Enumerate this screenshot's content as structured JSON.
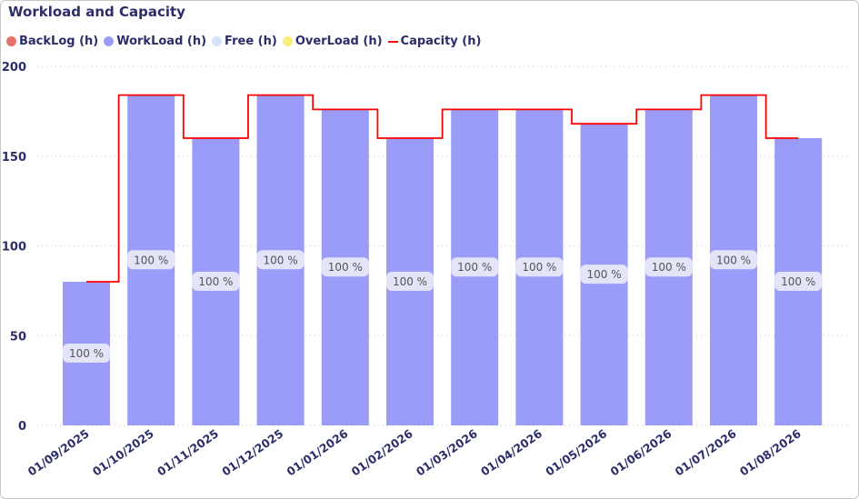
{
  "chart_data": {
    "type": "bar",
    "title": "Workload and Capacity",
    "legend": [
      {
        "name": "BackLog (h)",
        "color": "#e8706a",
        "kind": "dot"
      },
      {
        "name": "WorkLoad (h)",
        "color": "#9b9cfa",
        "kind": "dot"
      },
      {
        "name": "Free (h)",
        "color": "#d3e5f7",
        "kind": "dot"
      },
      {
        "name": "OverLoad (h)",
        "color": "#f9ef7a",
        "kind": "dot"
      },
      {
        "name": "Capacity (h)",
        "color": "#ff0000",
        "kind": "line"
      }
    ],
    "legend_position": "top-left",
    "categories": [
      "01/09/2025",
      "01/10/2025",
      "01/11/2025",
      "01/12/2025",
      "01/01/2026",
      "01/02/2026",
      "01/03/2026",
      "01/04/2026",
      "01/05/2026",
      "01/06/2026",
      "01/07/2026",
      "01/08/2026"
    ],
    "series": [
      {
        "name": "WorkLoad (h)",
        "type": "bar",
        "values": [
          80,
          184,
          160,
          184,
          176,
          160,
          176,
          176,
          168,
          176,
          184,
          160
        ]
      },
      {
        "name": "Capacity (h)",
        "type": "step-line",
        "values": [
          80,
          184,
          160,
          184,
          176,
          160,
          176,
          176,
          168,
          176,
          184,
          160
        ]
      }
    ],
    "data_labels": [
      "100 %",
      "100 %",
      "100 %",
      "100 %",
      "100 %",
      "100 %",
      "100 %",
      "100 %",
      "100 %",
      "100 %",
      "100 %",
      "100 %"
    ],
    "yticks": [
      0,
      50,
      100,
      150,
      200
    ],
    "ylim": [
      0,
      200
    ],
    "grid": true
  }
}
